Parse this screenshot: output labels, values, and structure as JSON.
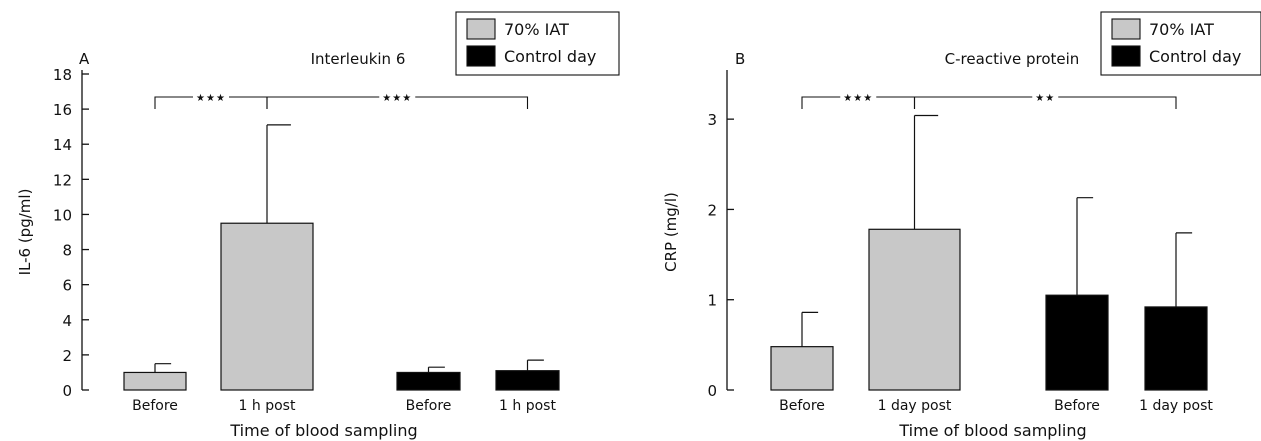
{
  "colors": {
    "iat_fill": "#c8c8c8",
    "control_fill": "#000000",
    "axis": "#111111",
    "background": "#ffffff"
  },
  "chart_data": [
    {
      "type": "bar",
      "panel_letter": "A",
      "title": "Interleukin 6",
      "xlabel": "Time of blood sampling",
      "ylabel": "IL-6 (pg/ml)",
      "ylim": [
        0,
        18
      ],
      "yticks": [
        0,
        2,
        4,
        6,
        8,
        10,
        12,
        14,
        16,
        18
      ],
      "legend_position": "top-right",
      "legend": [
        {
          "label": "70% IAT",
          "color": "#c8c8c8"
        },
        {
          "label": "Control day",
          "color": "#000000"
        }
      ],
      "bars": [
        {
          "category": "Before",
          "series": "70% IAT",
          "value": 1.0,
          "error": 0.5
        },
        {
          "category": "1 h post",
          "series": "70% IAT",
          "value": 9.5,
          "error": 5.6
        },
        {
          "category": "Before",
          "series": "Control day",
          "value": 1.0,
          "error": 0.3
        },
        {
          "category": "1 h post",
          "series": "Control day",
          "value": 1.1,
          "error": 0.6
        }
      ],
      "significance": [
        {
          "from_bar": 0,
          "to_bar": 1,
          "label": "***"
        },
        {
          "from_bar": 1,
          "to_bar": 3,
          "label": "***"
        }
      ]
    },
    {
      "type": "bar",
      "panel_letter": "B",
      "title": "C-reactive protein",
      "xlabel": "Time of blood sampling",
      "ylabel": "CRP (mg/l)",
      "ylim": [
        0,
        3.5
      ],
      "yticks": [
        0,
        1,
        2,
        3
      ],
      "legend_position": "top-right",
      "legend": [
        {
          "label": "70% IAT",
          "color": "#c8c8c8"
        },
        {
          "label": "Control day",
          "color": "#000000"
        }
      ],
      "bars": [
        {
          "category": "Before",
          "series": "70% IAT",
          "value": 0.48,
          "error": 0.38
        },
        {
          "category": "1 day post",
          "series": "70% IAT",
          "value": 1.78,
          "error": 1.26
        },
        {
          "category": "Before",
          "series": "Control day",
          "value": 1.05,
          "error": 1.08
        },
        {
          "category": "1 day post",
          "series": "Control day",
          "value": 0.92,
          "error": 0.82
        }
      ],
      "significance": [
        {
          "from_bar": 0,
          "to_bar": 1,
          "label": "***"
        },
        {
          "from_bar": 1,
          "to_bar": 3,
          "label": "**"
        }
      ]
    }
  ]
}
